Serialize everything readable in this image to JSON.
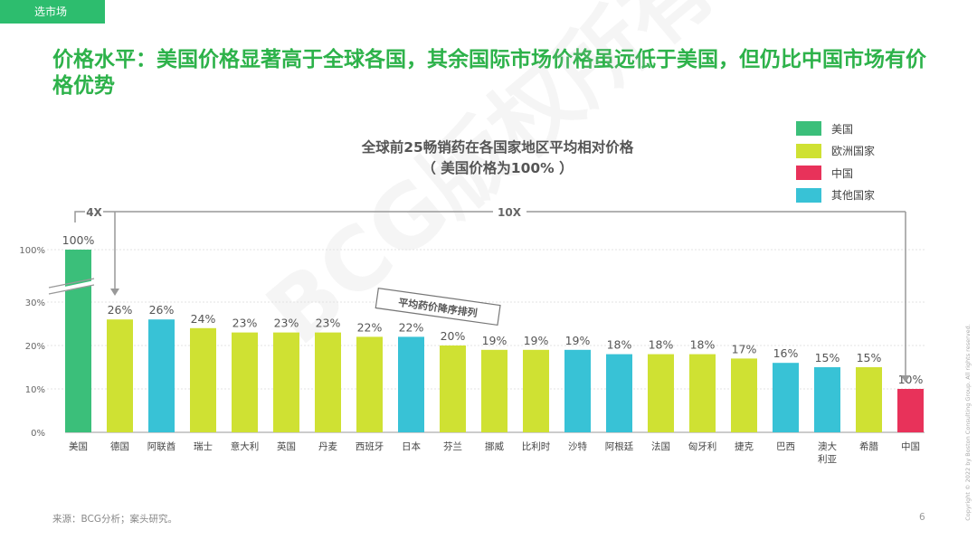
{
  "section_tab": "选市场",
  "headline": "价格水平：美国价格显著高于全球各国，其余国际市场价格虽远低于美国，但仍比中国市场有价格优势",
  "watermark": "BCG版权所有",
  "colors": {
    "us": "#3bbf7a",
    "europe": "#cfe133",
    "china": "#e8325a",
    "other": "#38c2d6",
    "headline": "#2db24a"
  },
  "legend": [
    {
      "label": "美国",
      "group": "us"
    },
    {
      "label": "欧洲国家",
      "group": "europe"
    },
    {
      "label": "中国",
      "group": "china"
    },
    {
      "label": "其他国家",
      "group": "other"
    }
  ],
  "annotations": {
    "bracket_short": "4X",
    "bracket_long": "10X",
    "sort_note": "平均药价降序排列"
  },
  "chart_data": {
    "type": "bar",
    "title": "全球前25畅销药在各国家地区平均相对价格",
    "subtitle": "（ 美国价格为100% ）",
    "xlabel": "",
    "ylabel": "",
    "y_ticks": [
      "0%",
      "10%",
      "20%",
      "30%",
      "100%"
    ],
    "axis_break": "between 30% and 100%",
    "categories": [
      "美国",
      "德国",
      "阿联酋",
      "瑞士",
      "意大利",
      "英国",
      "丹麦",
      "西班牙",
      "日本",
      "芬兰",
      "挪威",
      "比利时",
      "沙特",
      "阿根廷",
      "法国",
      "匈牙利",
      "捷克",
      "巴西",
      "澳大利亚",
      "希腊",
      "中国"
    ],
    "category_labels": [
      "美国",
      "德国",
      "阿联酋",
      "瑞士",
      "意大利",
      "英国",
      "丹麦",
      "西班牙",
      "日本",
      "芬兰",
      "挪威",
      "比利时",
      "沙特",
      "阿根廷",
      "法国",
      "匈牙利",
      "捷克",
      "巴西",
      "澳大\n利亚",
      "希腊",
      "中国"
    ],
    "values": [
      100,
      26,
      26,
      24,
      23,
      23,
      23,
      22,
      22,
      20,
      19,
      19,
      19,
      18,
      18,
      18,
      17,
      16,
      15,
      15,
      10
    ],
    "value_labels": [
      "100%",
      "26%",
      "26%",
      "24%",
      "23%",
      "23%",
      "23%",
      "22%",
      "22%",
      "20%",
      "19%",
      "19%",
      "19%",
      "18%",
      "18%",
      "18%",
      "17%",
      "16%",
      "15%",
      "15%",
      "10%"
    ],
    "groups": [
      "us",
      "europe",
      "other",
      "europe",
      "europe",
      "europe",
      "europe",
      "europe",
      "other",
      "europe",
      "europe",
      "europe",
      "other",
      "other",
      "europe",
      "europe",
      "europe",
      "other",
      "other",
      "europe",
      "china"
    ],
    "grid": true,
    "legend_position": "top-right"
  },
  "footer": {
    "source": "来源：BCG分析；案头研究。",
    "page_number": "6",
    "copyright": "Copyright © 2022 by Boston Consulting Group. All rights reserved."
  }
}
